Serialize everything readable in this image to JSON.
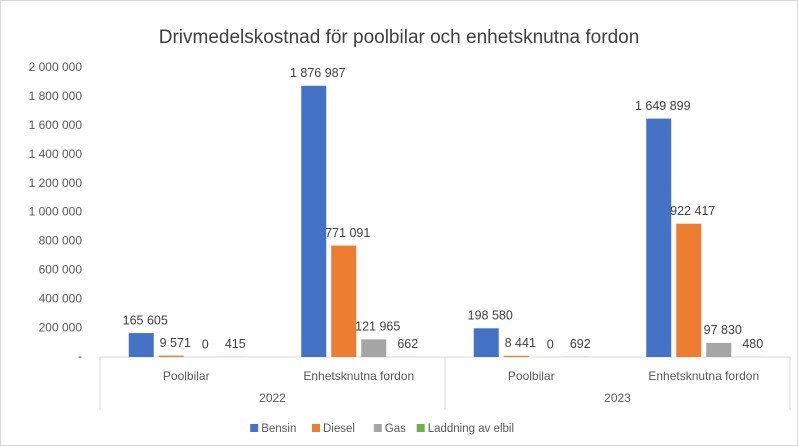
{
  "chart_data": {
    "type": "bar",
    "title": "Drivmedelskostnad för poolbilar och enhetsknutna fordon",
    "categories": [
      "Poolbilar",
      "Enhetsknutna fordon",
      "Poolbilar",
      "Enhetsknutna fordon"
    ],
    "category_groups": [
      "2022",
      "2023"
    ],
    "series": [
      {
        "name": "Bensin",
        "color": "#4472c4",
        "values": [
          165605,
          1876987,
          198580,
          1649899
        ],
        "value_labels": [
          "165 605",
          "1 876 987",
          "198 580",
          "1 649 899"
        ]
      },
      {
        "name": "Diesel",
        "color": "#ed7d31",
        "values": [
          9571,
          771091,
          8441,
          922417
        ],
        "value_labels": [
          "9 571",
          "771 091",
          "8 441",
          "922 417"
        ]
      },
      {
        "name": "Gas",
        "color": "#a5a5a5",
        "values": [
          0,
          121965,
          0,
          97830
        ],
        "value_labels": [
          "0",
          "121 965",
          "0",
          "97 830"
        ]
      },
      {
        "name": "Laddning av elbil",
        "color": "#70ad47",
        "values": [
          415,
          662,
          692,
          480
        ],
        "value_labels": [
          "415",
          "662",
          "692",
          "480"
        ]
      }
    ],
    "ylim": [
      0,
      2000000
    ],
    "yticks": [
      {
        "value": 0,
        "label": "-"
      },
      {
        "value": 200000,
        "label": "200 000"
      },
      {
        "value": 400000,
        "label": "400 000"
      },
      {
        "value": 600000,
        "label": "600 000"
      },
      {
        "value": 800000,
        "label": "800 000"
      },
      {
        "value": 1000000,
        "label": "1 000 000"
      },
      {
        "value": 1200000,
        "label": "1 200 000"
      },
      {
        "value": 1400000,
        "label": "1 400 000"
      },
      {
        "value": 1600000,
        "label": "1 600 000"
      },
      {
        "value": 1800000,
        "label": "1 800 000"
      },
      {
        "value": 2000000,
        "label": "2 000 000"
      }
    ],
    "grid": false,
    "legend": "bottom"
  }
}
